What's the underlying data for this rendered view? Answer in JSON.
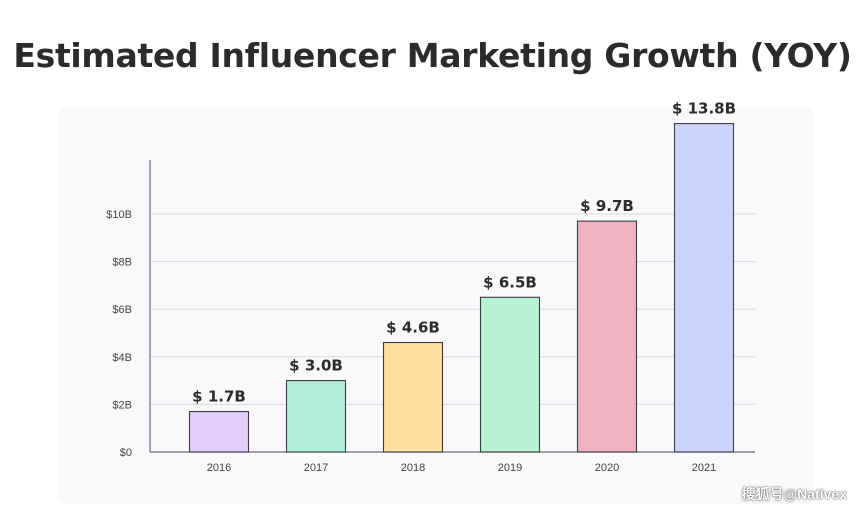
{
  "chart_data": {
    "type": "bar",
    "title": "Estimated Influencer Marketing Growth (YOY)",
    "categories": [
      "2016",
      "2017",
      "2018",
      "2019",
      "2020",
      "2021"
    ],
    "values": [
      1.7,
      3.0,
      4.6,
      6.5,
      9.7,
      13.8
    ],
    "value_labels": [
      "$ 1.7B",
      "$ 3.0B",
      "$ 4.6B",
      "$ 6.5B",
      "$ 9.7B",
      "$ 13.8B"
    ],
    "bar_colors": [
      "#e4cdfb",
      "#b1efd9",
      "#fedfa2",
      "#b9f2d3",
      "#edb3c1",
      "#cbd3fb"
    ],
    "y_ticks": [
      0,
      2,
      4,
      6,
      8,
      10
    ],
    "y_tick_labels": [
      "$0",
      "$2B",
      "$4B",
      "$6B",
      "$8B",
      "$10B"
    ],
    "ylim": [
      0,
      12
    ],
    "xlabel": "",
    "ylabel": "",
    "grid": true,
    "legend": "none"
  },
  "watermark": "搜狐号@Nativex"
}
